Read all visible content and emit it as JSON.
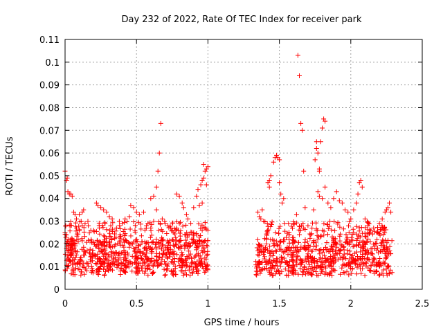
{
  "chart_data": {
    "type": "scatter",
    "title": "Day 232 of 2022, Rate Of TEC Index for receiver park",
    "xlabel": "GPS time / hours",
    "ylabel": "ROTI / TECUs",
    "xlim": [
      0,
      2.5
    ],
    "ylim": [
      0,
      0.11
    ],
    "xticks": [
      0,
      0.5,
      1,
      1.5,
      2,
      2.5
    ],
    "xtick_labels": [
      "0",
      "0.5",
      "1",
      "1.5",
      "2",
      "2.5"
    ],
    "yticks": [
      0,
      0.01,
      0.02,
      0.03,
      0.04,
      0.05,
      0.06,
      0.07,
      0.08,
      0.09,
      0.1,
      0.11
    ],
    "ytick_labels": [
      "0",
      "0.01",
      "0.02",
      "0.03",
      "0.04",
      "0.05",
      "0.06",
      "0.07",
      "0.08",
      "0.09",
      "0.1",
      "0.11"
    ],
    "grid": true,
    "marker": "+",
    "marker_color": "#ff0000",
    "series": [
      {
        "points": [
          [
            0.0,
            0.052
          ],
          [
            0.01,
            0.048
          ],
          [
            0.015,
            0.049
          ],
          [
            0.02,
            0.043
          ],
          [
            0.03,
            0.042
          ],
          [
            0.04,
            0.042
          ],
          [
            0.05,
            0.041
          ],
          [
            0.0,
            0.025
          ],
          [
            0.005,
            0.028
          ],
          [
            0.01,
            0.024
          ],
          [
            0.02,
            0.021
          ],
          [
            0.03,
            0.02
          ],
          [
            0.04,
            0.022
          ],
          [
            0.05,
            0.019
          ],
          [
            0.06,
            0.034
          ],
          [
            0.07,
            0.033
          ],
          [
            0.08,
            0.031
          ],
          [
            0.1,
            0.033
          ],
          [
            0.12,
            0.034
          ],
          [
            0.13,
            0.035
          ],
          [
            0.08,
            0.027
          ],
          [
            0.1,
            0.026
          ],
          [
            0.12,
            0.028
          ],
          [
            0.14,
            0.029
          ],
          [
            0.16,
            0.03
          ],
          [
            0.18,
            0.026
          ],
          [
            0.22,
            0.038
          ],
          [
            0.23,
            0.037
          ],
          [
            0.25,
            0.036
          ],
          [
            0.27,
            0.035
          ],
          [
            0.29,
            0.034
          ],
          [
            0.31,
            0.032
          ],
          [
            0.33,
            0.031
          ],
          [
            0.2,
            0.026
          ],
          [
            0.24,
            0.027
          ],
          [
            0.28,
            0.029
          ],
          [
            0.32,
            0.028
          ],
          [
            0.36,
            0.027
          ],
          [
            0.4,
            0.029
          ],
          [
            0.42,
            0.031
          ],
          [
            0.45,
            0.032
          ],
          [
            0.48,
            0.036
          ],
          [
            0.5,
            0.034
          ],
          [
            0.52,
            0.033
          ],
          [
            0.55,
            0.034
          ],
          [
            0.57,
            0.028
          ],
          [
            0.46,
            0.037
          ],
          [
            0.58,
            0.029
          ],
          [
            0.6,
            0.027
          ],
          [
            0.62,
            0.03
          ],
          [
            0.64,
            0.035
          ],
          [
            0.6,
            0.04
          ],
          [
            0.62,
            0.041
          ],
          [
            0.64,
            0.045
          ],
          [
            0.65,
            0.052
          ],
          [
            0.66,
            0.06
          ],
          [
            0.67,
            0.073
          ],
          [
            0.68,
            0.031
          ],
          [
            0.7,
            0.029
          ],
          [
            0.72,
            0.028
          ],
          [
            0.74,
            0.027
          ],
          [
            0.76,
            0.025
          ],
          [
            0.78,
            0.027
          ],
          [
            0.8,
            0.029
          ],
          [
            0.78,
            0.042
          ],
          [
            0.8,
            0.041
          ],
          [
            0.82,
            0.038
          ],
          [
            0.83,
            0.036
          ],
          [
            0.85,
            0.033
          ],
          [
            0.86,
            0.031
          ],
          [
            0.88,
            0.029
          ],
          [
            0.9,
            0.036
          ],
          [
            0.92,
            0.041
          ],
          [
            0.93,
            0.044
          ],
          [
            0.95,
            0.046
          ],
          [
            0.96,
            0.048
          ],
          [
            0.97,
            0.049
          ],
          [
            0.98,
            0.052
          ],
          [
            0.94,
            0.037
          ],
          [
            0.96,
            0.038
          ],
          [
            0.99,
            0.053
          ],
          [
            1.0,
            0.054
          ],
          [
            0.97,
            0.055
          ],
          [
            0.99,
            0.046
          ],
          [
            0.9,
            0.025
          ],
          [
            0.92,
            0.024
          ],
          [
            0.94,
            0.023
          ],
          [
            0.96,
            0.026
          ],
          [
            0.98,
            0.027
          ],
          [
            1.0,
            0.026
          ],
          [
            1.35,
            0.034
          ],
          [
            1.36,
            0.032
          ],
          [
            1.37,
            0.031
          ],
          [
            1.38,
            0.035
          ],
          [
            1.39,
            0.03
          ],
          [
            1.42,
            0.047
          ],
          [
            1.43,
            0.048
          ],
          [
            1.44,
            0.05
          ],
          [
            1.43,
            0.045
          ],
          [
            1.46,
            0.056
          ],
          [
            1.47,
            0.058
          ],
          [
            1.48,
            0.059
          ],
          [
            1.49,
            0.058
          ],
          [
            1.5,
            0.057
          ],
          [
            1.5,
            0.047
          ],
          [
            1.51,
            0.042
          ],
          [
            1.52,
            0.038
          ],
          [
            1.53,
            0.04
          ],
          [
            1.6,
            0.029
          ],
          [
            1.62,
            0.033
          ],
          [
            1.63,
            0.103
          ],
          [
            1.64,
            0.094
          ],
          [
            1.65,
            0.073
          ],
          [
            1.66,
            0.07
          ],
          [
            1.67,
            0.052
          ],
          [
            1.68,
            0.036
          ],
          [
            1.7,
            0.028
          ],
          [
            1.72,
            0.024
          ],
          [
            1.74,
            0.035
          ],
          [
            1.75,
            0.057
          ],
          [
            1.76,
            0.062
          ],
          [
            1.77,
            0.06
          ],
          [
            1.76,
            0.065
          ],
          [
            1.78,
            0.053
          ],
          [
            1.79,
            0.065
          ],
          [
            1.8,
            0.071
          ],
          [
            1.81,
            0.075
          ],
          [
            1.82,
            0.074
          ],
          [
            1.78,
            0.052
          ],
          [
            1.77,
            0.043
          ],
          [
            1.78,
            0.041
          ],
          [
            1.8,
            0.04
          ],
          [
            1.82,
            0.045
          ],
          [
            1.84,
            0.038
          ],
          [
            1.86,
            0.036
          ],
          [
            1.88,
            0.04
          ],
          [
            1.9,
            0.043
          ],
          [
            1.92,
            0.039
          ],
          [
            1.94,
            0.038
          ],
          [
            1.96,
            0.035
          ],
          [
            1.98,
            0.034
          ],
          [
            2.0,
            0.031
          ],
          [
            2.02,
            0.035
          ],
          [
            2.04,
            0.038
          ],
          [
            2.05,
            0.042
          ],
          [
            2.06,
            0.047
          ],
          [
            2.07,
            0.048
          ],
          [
            2.08,
            0.045
          ],
          [
            2.1,
            0.031
          ],
          [
            2.12,
            0.028
          ],
          [
            2.14,
            0.026
          ],
          [
            2.16,
            0.027
          ],
          [
            2.18,
            0.025
          ],
          [
            2.2,
            0.029
          ],
          [
            2.22,
            0.031
          ],
          [
            2.24,
            0.034
          ],
          [
            2.25,
            0.035
          ],
          [
            2.26,
            0.036
          ],
          [
            2.27,
            0.038
          ],
          [
            2.28,
            0.034
          ]
        ]
      }
    ],
    "dense_clusters": [
      {
        "x_range": [
          0.0,
          1.0
        ],
        "y_range": [
          0.004,
          0.03
        ],
        "count": 820,
        "seed": 11
      },
      {
        "x_range": [
          1.33,
          2.29
        ],
        "y_range": [
          0.005,
          0.03
        ],
        "count": 760,
        "seed": 29
      }
    ]
  }
}
